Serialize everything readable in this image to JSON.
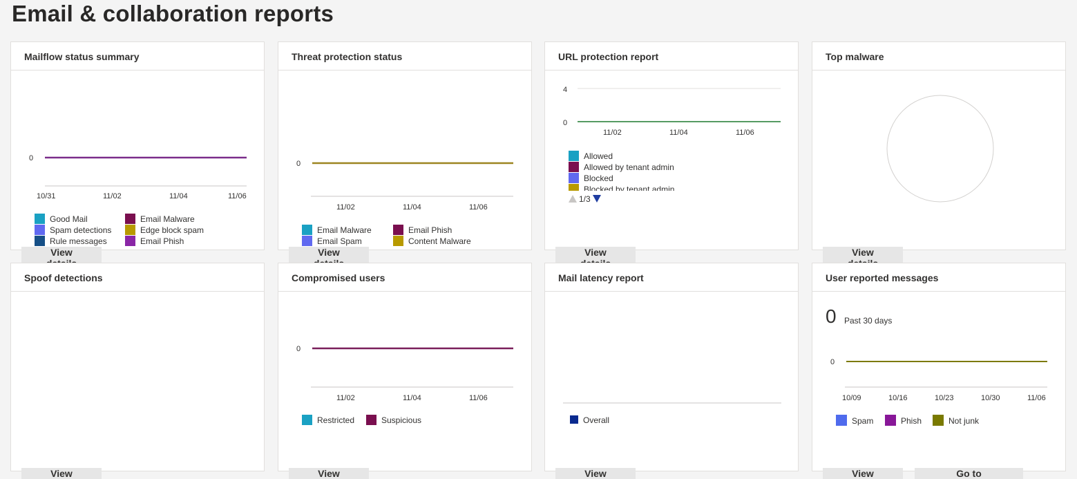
{
  "page": {
    "title": "Email & collaboration reports"
  },
  "cards": {
    "mailflow": {
      "title": "Mailflow status summary",
      "y_tick": "0",
      "x_ticks": [
        "10/31",
        "11/02",
        "11/04",
        "11/06"
      ],
      "line_color": "#7a2d8a",
      "legend": [
        {
          "label": "Good Mail",
          "color": "#1aa1c3"
        },
        {
          "label": "Spam detections",
          "color": "#6069f0"
        },
        {
          "label": "Rule messages",
          "color": "#164f86"
        },
        {
          "label": "Email Malware",
          "color": "#7a0f4f"
        },
        {
          "label": "Edge block spam",
          "color": "#b89a00"
        },
        {
          "label": "Email Phish",
          "color": "#8a26a6"
        }
      ],
      "button": "View details"
    },
    "threat": {
      "title": "Threat protection status",
      "y_tick": "0",
      "x_ticks": [
        "11/02",
        "11/04",
        "11/06"
      ],
      "line_color": "#9c8520",
      "legend": [
        {
          "label": "Email Malware",
          "color": "#1aa1c3"
        },
        {
          "label": "Email Spam",
          "color": "#6069f0"
        },
        {
          "label": "Email Phish",
          "color": "#7a0f4f"
        },
        {
          "label": "Content Malware",
          "color": "#b89a00"
        }
      ],
      "button": "View details"
    },
    "url": {
      "title": "URL protection report",
      "y_ticks": [
        "4",
        "0"
      ],
      "x_ticks": [
        "11/02",
        "11/04",
        "11/06"
      ],
      "line_color": "#1e7a2e",
      "legend": [
        {
          "label": "Allowed",
          "color": "#1aa1c3"
        },
        {
          "label": "Allowed by tenant admin",
          "color": "#7a0f4f"
        },
        {
          "label": "Blocked",
          "color": "#6069f0"
        },
        {
          "label": "Blocked by tenant admin",
          "color": "#b89a00"
        }
      ],
      "pager": "1/3",
      "button": "View details"
    },
    "malware": {
      "title": "Top malware",
      "button": "View details"
    },
    "spoof": {
      "title": "Spoof detections",
      "button": "View details"
    },
    "compromised": {
      "title": "Compromised users",
      "y_tick": "0",
      "x_ticks": [
        "11/02",
        "11/04",
        "11/06"
      ],
      "line_color": "#7a1f5a",
      "legend": [
        {
          "label": "Restricted",
          "color": "#1aa1c3"
        },
        {
          "label": "Suspicious",
          "color": "#7a0f4f"
        }
      ],
      "button": "View details"
    },
    "latency": {
      "title": "Mail latency report",
      "legend": [
        {
          "label": "Overall",
          "color": "#0a2a8f"
        }
      ],
      "button": "View details"
    },
    "reported": {
      "title": "User reported messages",
      "count": "0",
      "period": "Past 30 days",
      "y_tick": "0",
      "x_ticks": [
        "10/09",
        "10/16",
        "10/23",
        "10/30",
        "11/06"
      ],
      "line_color": "#7c7a00",
      "legend": [
        {
          "label": "Spam",
          "color": "#4f6bed"
        },
        {
          "label": "Phish",
          "color": "#881798"
        },
        {
          "label": "Not junk",
          "color": "#7a7a00"
        }
      ],
      "button": "View details",
      "button2": "Go to Submissions"
    }
  }
}
